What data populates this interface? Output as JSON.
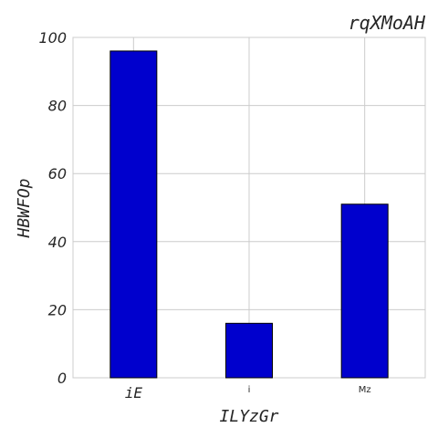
{
  "chart_data": {
    "type": "bar",
    "title": "rqXMoAH",
    "xlabel": "ILYzGr",
    "ylabel": "HBWFOp",
    "categories": [
      "iE",
      "i",
      "Mz"
    ],
    "values": [
      96,
      16,
      51
    ],
    "ylim": [
      0,
      100
    ],
    "yticks": [
      0,
      20,
      40,
      60,
      80,
      100
    ],
    "grid": true,
    "bar_color": "#0000cd",
    "grid_color": "#cccccc"
  }
}
